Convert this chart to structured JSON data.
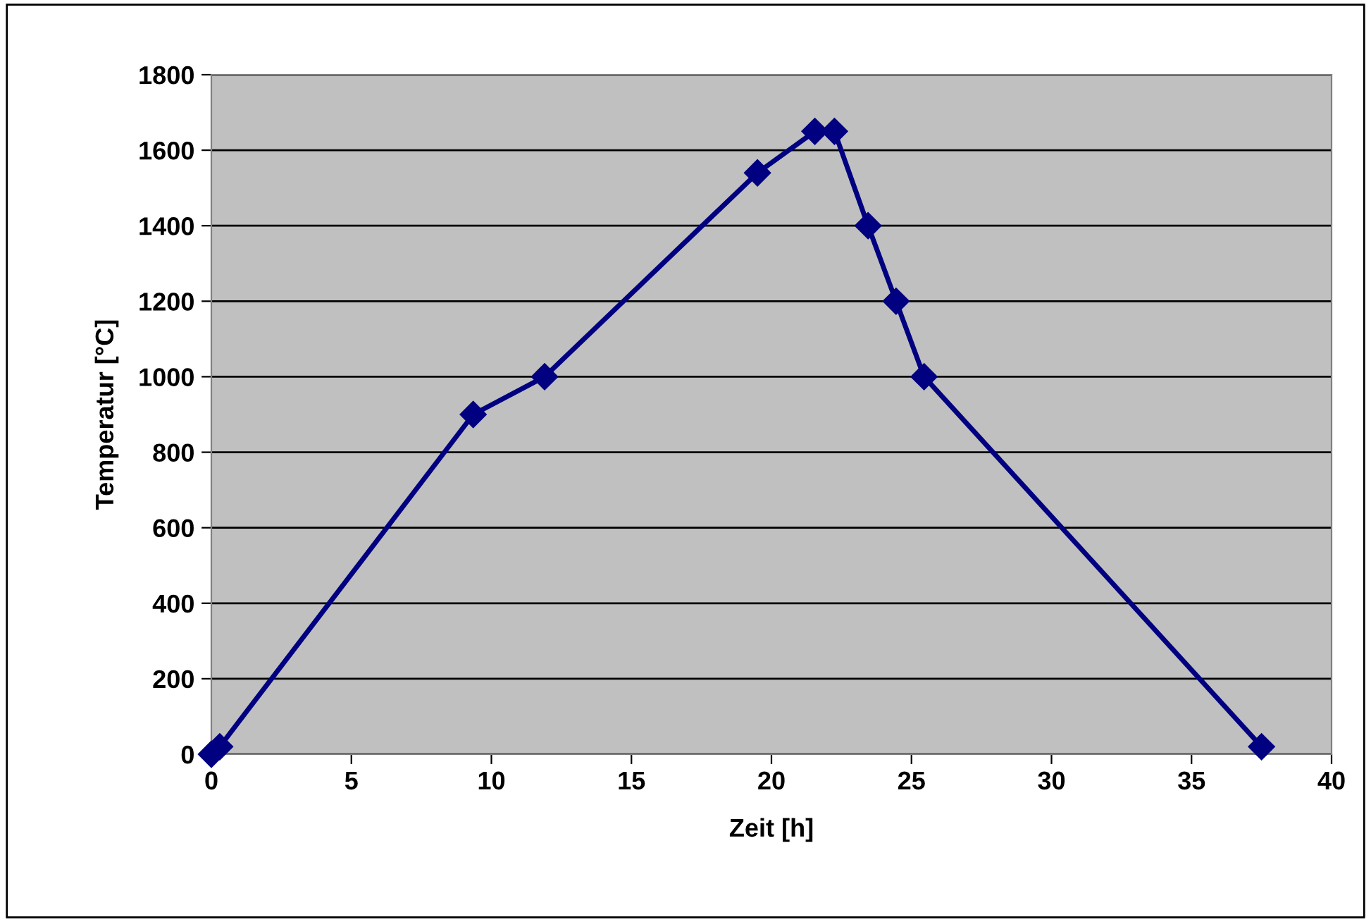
{
  "chart_data": {
    "type": "line",
    "xlabel": "Zeit [h]",
    "ylabel": "Temperatur [°C]",
    "series": [
      {
        "color": "#000080",
        "x": [
          0,
          0.3,
          9.35,
          11.9,
          19.5,
          21.55,
          22.25,
          23.45,
          24.45,
          25.45,
          37.5
        ],
        "values": [
          0,
          20,
          900,
          1000,
          1540,
          1650,
          1650,
          1400,
          1200,
          1000,
          20
        ]
      }
    ],
    "xlim": [
      0,
      40
    ],
    "xticks": [
      0,
      5,
      10,
      15,
      20,
      25,
      30,
      35,
      40
    ],
    "ylim": [
      0,
      1800
    ],
    "yticks": [
      0,
      200,
      400,
      600,
      800,
      1000,
      1200,
      1400,
      1600,
      1800
    ],
    "grid": "y",
    "marker": "diamond",
    "line_style": "solid",
    "legend": false
  }
}
